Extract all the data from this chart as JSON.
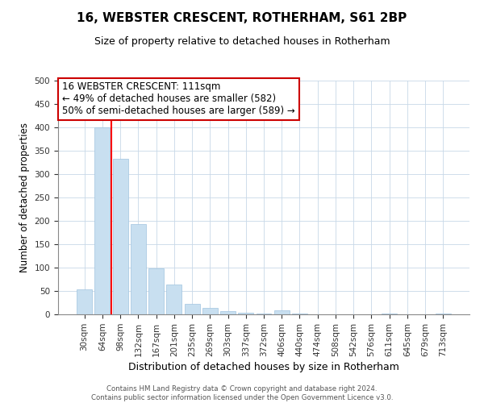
{
  "title": "16, WEBSTER CRESCENT, ROTHERHAM, S61 2BP",
  "subtitle": "Size of property relative to detached houses in Rotherham",
  "xlabel": "Distribution of detached houses by size in Rotherham",
  "ylabel": "Number of detached properties",
  "bar_labels": [
    "30sqm",
    "64sqm",
    "98sqm",
    "132sqm",
    "167sqm",
    "201sqm",
    "235sqm",
    "269sqm",
    "303sqm",
    "337sqm",
    "372sqm",
    "406sqm",
    "440sqm",
    "474sqm",
    "508sqm",
    "542sqm",
    "576sqm",
    "611sqm",
    "645sqm",
    "679sqm",
    "713sqm"
  ],
  "bar_values": [
    53,
    400,
    333,
    193,
    99,
    63,
    22,
    13,
    7,
    4,
    2,
    8,
    1,
    0,
    0,
    0,
    0,
    2,
    0,
    0,
    2
  ],
  "bar_color": "#c8dff0",
  "bar_edge_color": "#a0c4e0",
  "vline_x": 1.5,
  "vline_color": "red",
  "ylim": [
    0,
    500
  ],
  "yticks": [
    0,
    50,
    100,
    150,
    200,
    250,
    300,
    350,
    400,
    450,
    500
  ],
  "annotation_title": "16 WEBSTER CRESCENT: 111sqm",
  "annotation_line1": "← 49% of detached houses are smaller (582)",
  "annotation_line2": "50% of semi-detached houses are larger (589) →",
  "annotation_box_color": "white",
  "annotation_box_edgecolor": "#cc0000",
  "footer1": "Contains HM Land Registry data © Crown copyright and database right 2024.",
  "footer2": "Contains public sector information licensed under the Open Government Licence v3.0."
}
